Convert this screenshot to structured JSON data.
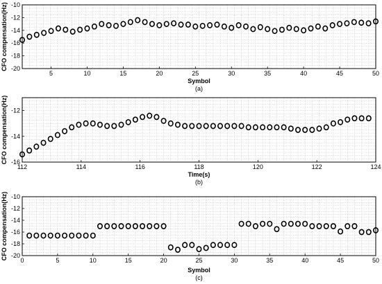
{
  "chart_data": [
    {
      "type": "scatter",
      "caption": "(a)",
      "xlabel": "Symbol",
      "ylabel": "CFO compensation(Hz)",
      "xlim": [
        1,
        50
      ],
      "ylim": [
        -20,
        -10
      ],
      "xticks": [
        5,
        10,
        15,
        20,
        25,
        30,
        35,
        40,
        45,
        50
      ],
      "yticks": [
        -20,
        -18,
        -16,
        -14,
        -12,
        -10
      ],
      "grid": true,
      "marker": "circle-open",
      "x": [
        1,
        2,
        3,
        4,
        5,
        6,
        7,
        8,
        9,
        10,
        11,
        12,
        13,
        14,
        15,
        16,
        17,
        18,
        19,
        20,
        21,
        22,
        23,
        24,
        25,
        26,
        27,
        28,
        29,
        30,
        31,
        32,
        33,
        34,
        35,
        36,
        37,
        38,
        39,
        40,
        41,
        42,
        43,
        44,
        45,
        46,
        47,
        48,
        49,
        50
      ],
      "y": [
        -15.5,
        -15.0,
        -14.7,
        -14.4,
        -14.1,
        -13.7,
        -13.9,
        -14.2,
        -13.9,
        -13.7,
        -13.4,
        -13.0,
        -13.2,
        -13.3,
        -13.0,
        -12.7,
        -12.4,
        -12.7,
        -13.0,
        -13.2,
        -13.0,
        -12.9,
        -13.1,
        -13.1,
        -13.4,
        -13.3,
        -13.2,
        -13.1,
        -13.4,
        -13.6,
        -13.2,
        -13.4,
        -13.8,
        -13.5,
        -13.8,
        -14.1,
        -13.9,
        -13.6,
        -13.8,
        -14.0,
        -13.7,
        -13.4,
        -13.7,
        -13.2,
        -13.0,
        -12.9,
        -12.7,
        -12.8,
        -12.9,
        -12.6
      ]
    },
    {
      "type": "scatter",
      "caption": "(b)",
      "xlabel": "Time(s)",
      "ylabel": "CFO compensation(Hz)",
      "xlim": [
        112,
        124
      ],
      "ylim": [
        -16,
        -11
      ],
      "xticks": [
        112,
        114,
        116,
        118,
        120,
        122,
        124
      ],
      "yticks": [
        -16,
        -14,
        -12
      ],
      "grid": true,
      "marker": "circle-open",
      "x": [
        112.0,
        112.24,
        112.48,
        112.72,
        112.96,
        113.2,
        113.44,
        113.68,
        113.92,
        114.16,
        114.4,
        114.64,
        114.88,
        115.12,
        115.36,
        115.6,
        115.84,
        116.08,
        116.32,
        116.56,
        116.8,
        117.04,
        117.28,
        117.52,
        117.76,
        118.0,
        118.24,
        118.48,
        118.72,
        118.96,
        119.2,
        119.44,
        119.68,
        119.92,
        120.16,
        120.4,
        120.64,
        120.88,
        121.12,
        121.36,
        121.6,
        121.84,
        122.08,
        122.32,
        122.56,
        122.8,
        123.04,
        123.28,
        123.52,
        123.76
      ],
      "y": [
        -15.4,
        -15.1,
        -14.8,
        -14.5,
        -14.2,
        -13.9,
        -13.6,
        -13.3,
        -13.1,
        -13.0,
        -13.0,
        -13.1,
        -13.2,
        -13.2,
        -13.1,
        -12.9,
        -12.7,
        -12.5,
        -12.4,
        -12.5,
        -12.8,
        -13.0,
        -13.1,
        -13.2,
        -13.2,
        -13.2,
        -13.2,
        -13.2,
        -13.2,
        -13.2,
        -13.2,
        -13.2,
        -13.3,
        -13.3,
        -13.3,
        -13.3,
        -13.3,
        -13.3,
        -13.4,
        -13.5,
        -13.5,
        -13.5,
        -13.4,
        -13.3,
        -13.0,
        -12.9,
        -12.7,
        -12.6,
        -12.6,
        -12.6
      ]
    },
    {
      "type": "scatter",
      "caption": "(c)",
      "xlabel": "Symbol",
      "ylabel": "CFO compensation(Hz)",
      "xlim": [
        0,
        50
      ],
      "ylim": [
        -20,
        -10
      ],
      "xticks": [
        0,
        5,
        10,
        15,
        20,
        25,
        30,
        35,
        40,
        45,
        50
      ],
      "yticks": [
        -20,
        -18,
        -16,
        -14,
        -12,
        -10
      ],
      "grid": true,
      "marker": "circle-open",
      "x": [
        1,
        2,
        3,
        4,
        5,
        6,
        7,
        8,
        9,
        10,
        11,
        12,
        13,
        14,
        15,
        16,
        17,
        18,
        19,
        20,
        21,
        22,
        23,
        24,
        25,
        26,
        27,
        28,
        29,
        30,
        31,
        32,
        33,
        34,
        35,
        36,
        37,
        38,
        39,
        40,
        41,
        42,
        43,
        44,
        45,
        46,
        47,
        48,
        49,
        50
      ],
      "y": [
        -16.6,
        -16.6,
        -16.6,
        -16.6,
        -16.6,
        -16.6,
        -16.6,
        -16.6,
        -16.6,
        -16.6,
        -15.0,
        -15.0,
        -15.0,
        -15.0,
        -15.0,
        -15.0,
        -15.0,
        -15.0,
        -15.0,
        -15.0,
        -18.6,
        -19.0,
        -18.2,
        -18.2,
        -18.9,
        -18.7,
        -18.2,
        -18.2,
        -18.2,
        -18.2,
        -14.6,
        -14.6,
        -15.0,
        -14.6,
        -14.6,
        -15.5,
        -14.6,
        -14.6,
        -14.6,
        -14.6,
        -15.0,
        -15.0,
        -15.0,
        -15.0,
        -15.9,
        -15.0,
        -15.0,
        -16.0,
        -16.0,
        -15.7
      ]
    }
  ]
}
